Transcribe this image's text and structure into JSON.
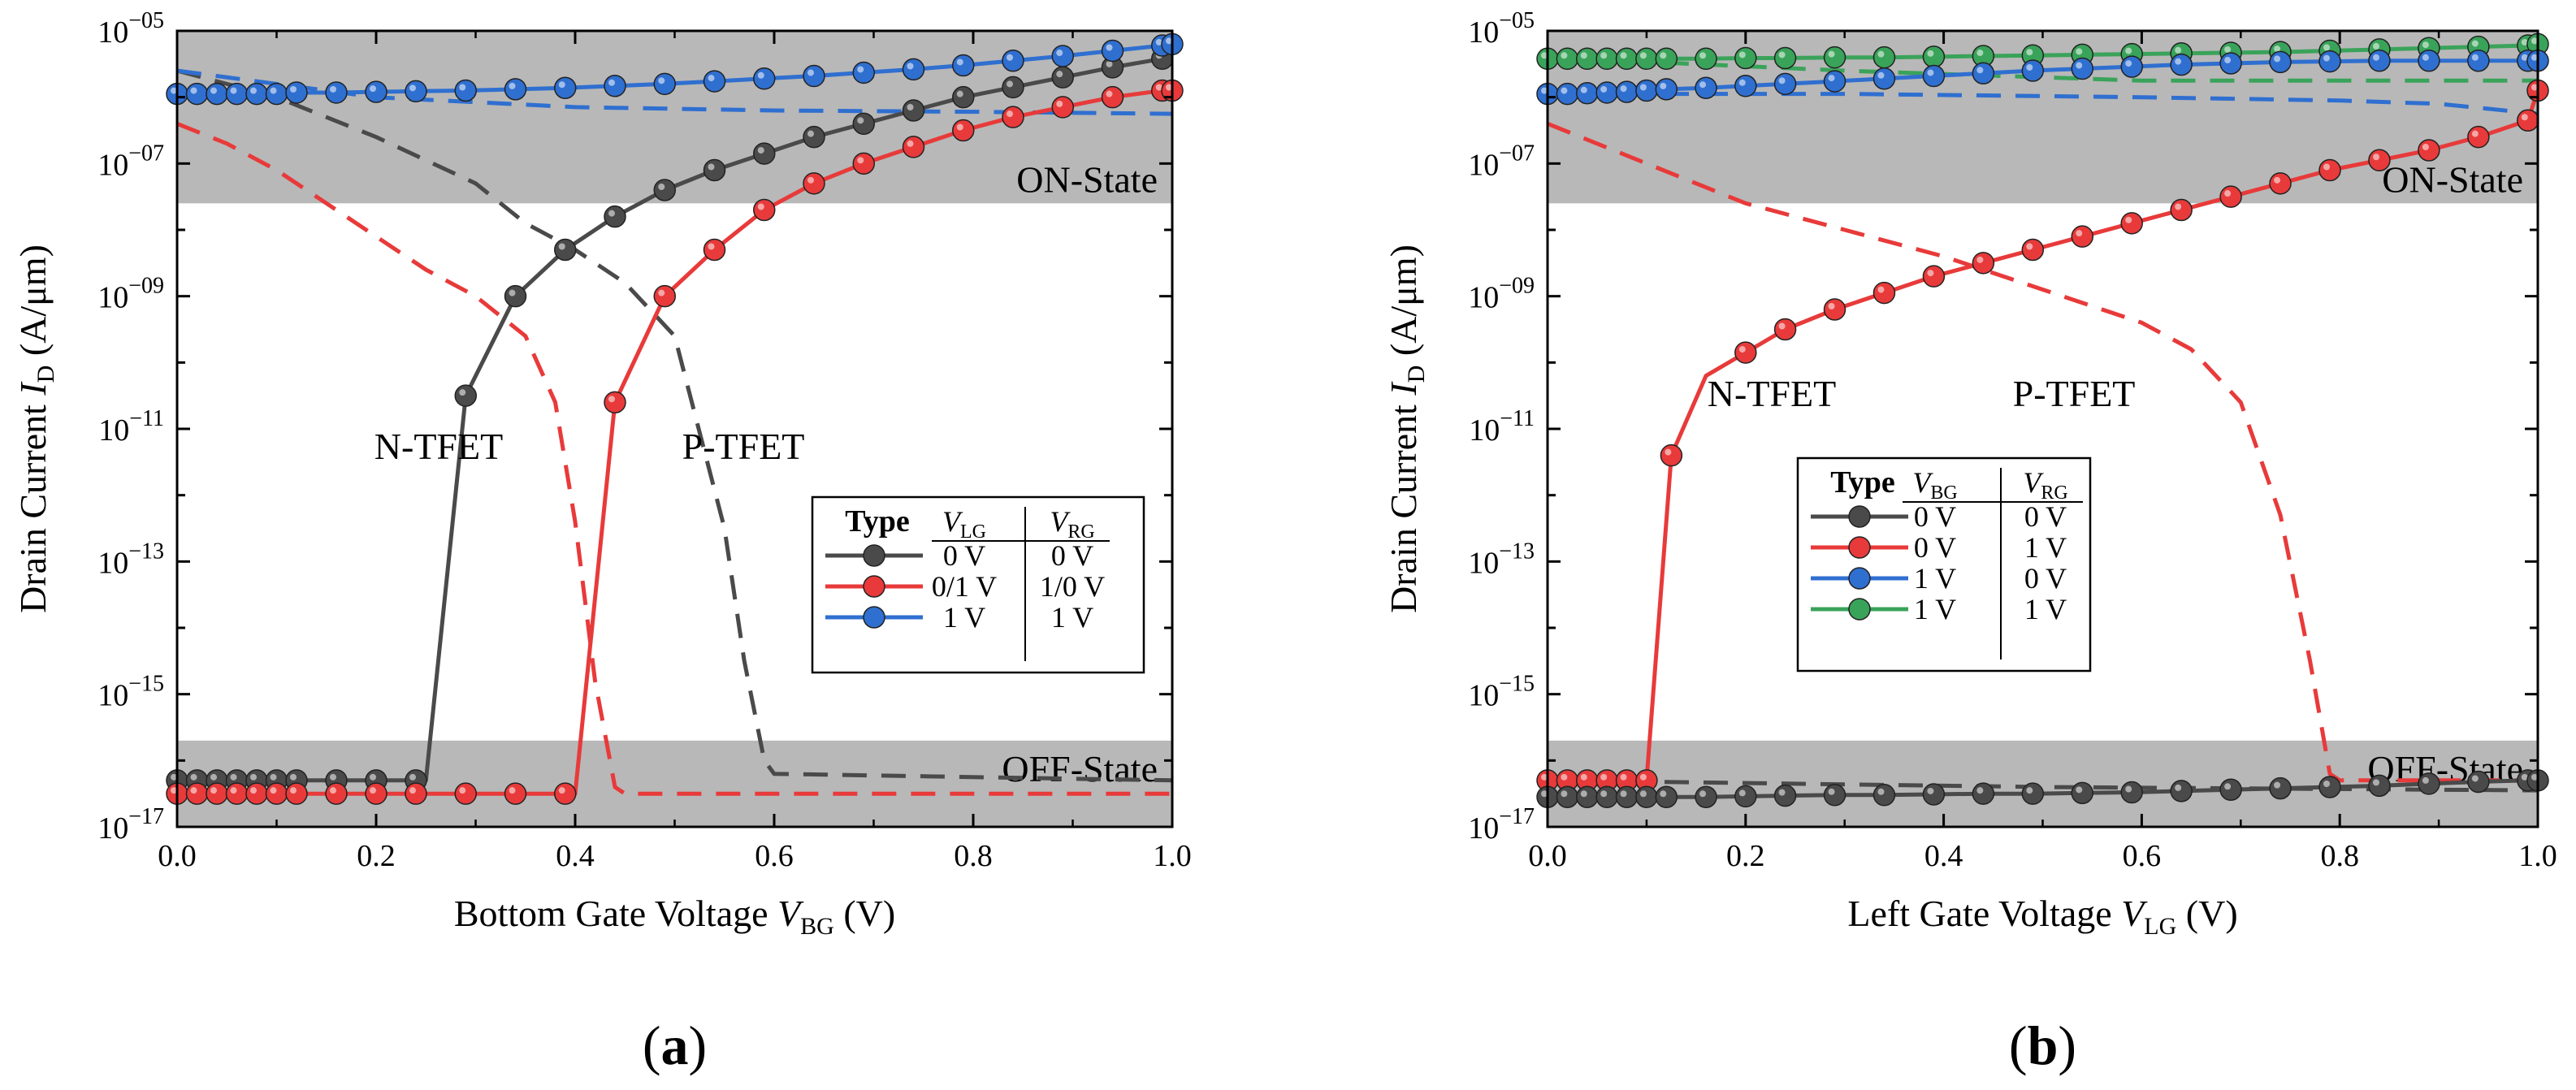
{
  "colors": {
    "black": "#4a4a4a",
    "red": "#e83a3a",
    "blue": "#2f6fd0",
    "green": "#3aa35a",
    "band": "#b8b8b8"
  },
  "chart_data": [
    {
      "type": "line",
      "panel_label": "(a)",
      "xlabel": "Bottom Gate Voltage ",
      "xlabel_var": "V",
      "xlabel_sub": "BG",
      "xlabel_unit": " (V)",
      "ylabel": "Drain Current ",
      "ylabel_var": "I",
      "ylabel_sub": "D",
      "ylabel_unit": " (A/μm)",
      "xlim": [
        0,
        1
      ],
      "ylim_exp": [
        -17,
        -5
      ],
      "yscale": "log",
      "xticks": [
        "0.0",
        "0.2",
        "0.4",
        "0.6",
        "0.8",
        "1.0"
      ],
      "yticks": [
        {
          "base": "10",
          "exp": "−05"
        },
        {
          "base": "10",
          "exp": "−07"
        },
        {
          "base": "10",
          "exp": "−09"
        },
        {
          "base": "10",
          "exp": "−11"
        },
        {
          "base": "10",
          "exp": "−13"
        },
        {
          "base": "10",
          "exp": "−15"
        },
        {
          "base": "10",
          "exp": "−17"
        }
      ],
      "bands": [
        {
          "label": "ON-State",
          "from_exp": -7.6,
          "to_exp": -5
        },
        {
          "label": "OFF-State",
          "from_exp": -17,
          "to_exp": -15.7
        }
      ],
      "annotations": [
        "N-TFET",
        "P-TFET"
      ],
      "legend": {
        "title": "Type",
        "col1": "V",
        "col1_sub": "LG",
        "col2": "V",
        "col2_sub": "RG",
        "rows": [
          {
            "color": "black",
            "c1": "0 V",
            "c2": "0 V"
          },
          {
            "color": "red",
            "c1": "0/1 V",
            "c2": "1/0 V"
          },
          {
            "color": "blue",
            "c1": "1 V",
            "c2": "1 V"
          }
        ]
      },
      "series": [
        {
          "name": "black solid",
          "color": "black",
          "style": "solid",
          "x": [
            0,
            0.02,
            0.04,
            0.06,
            0.08,
            0.1,
            0.12,
            0.16,
            0.2,
            0.24,
            0.25,
            0.29,
            0.34,
            0.39,
            0.44,
            0.49,
            0.54,
            0.59,
            0.64,
            0.69,
            0.74,
            0.79,
            0.84,
            0.89,
            0.94,
            0.99,
            1.0
          ],
          "y": [
            -16.3,
            -16.3,
            -16.3,
            -16.3,
            -16.3,
            -16.3,
            -16.3,
            -16.3,
            -16.3,
            -16.3,
            -16.3,
            -10.5,
            -9.0,
            -8.3,
            -7.8,
            -7.4,
            -7.1,
            -6.85,
            -6.6,
            -6.4,
            -6.2,
            -6.0,
            -5.85,
            -5.7,
            -5.55,
            -5.42,
            -5.4
          ],
          "markers": [
            0,
            1,
            2,
            3,
            4,
            5,
            6,
            7,
            8,
            9,
            11,
            12,
            13,
            14,
            15,
            16,
            17,
            18,
            19,
            20,
            21,
            22,
            23,
            24,
            25
          ]
        },
        {
          "name": "red solid",
          "color": "red",
          "style": "solid",
          "x": [
            0,
            0.02,
            0.04,
            0.06,
            0.08,
            0.1,
            0.12,
            0.16,
            0.2,
            0.24,
            0.29,
            0.34,
            0.39,
            0.4,
            0.44,
            0.49,
            0.54,
            0.59,
            0.64,
            0.69,
            0.74,
            0.79,
            0.84,
            0.89,
            0.94,
            0.99,
            1.0
          ],
          "y": [
            -16.5,
            -16.5,
            -16.5,
            -16.5,
            -16.5,
            -16.5,
            -16.5,
            -16.5,
            -16.5,
            -16.5,
            -16.5,
            -16.5,
            -16.5,
            -16.5,
            -10.6,
            -9.0,
            -8.3,
            -7.7,
            -7.3,
            -7.0,
            -6.75,
            -6.5,
            -6.3,
            -6.15,
            -6.0,
            -5.9,
            -5.9
          ],
          "markers": [
            0,
            1,
            2,
            3,
            4,
            5,
            6,
            7,
            8,
            9,
            10,
            11,
            12,
            14,
            15,
            16,
            17,
            18,
            19,
            20,
            21,
            22,
            23,
            24,
            25,
            26
          ]
        },
        {
          "name": "blue solid",
          "color": "blue",
          "style": "solid",
          "x": [
            0,
            0.02,
            0.04,
            0.06,
            0.08,
            0.1,
            0.12,
            0.16,
            0.2,
            0.24,
            0.29,
            0.34,
            0.39,
            0.44,
            0.49,
            0.54,
            0.59,
            0.64,
            0.69,
            0.74,
            0.79,
            0.84,
            0.89,
            0.94,
            0.99,
            1.0
          ],
          "y": [
            -5.95,
            -5.95,
            -5.95,
            -5.95,
            -5.95,
            -5.95,
            -5.93,
            -5.93,
            -5.92,
            -5.91,
            -5.9,
            -5.88,
            -5.86,
            -5.83,
            -5.8,
            -5.76,
            -5.72,
            -5.68,
            -5.63,
            -5.58,
            -5.52,
            -5.45,
            -5.38,
            -5.3,
            -5.22,
            -5.2
          ],
          "markers": [
            0,
            1,
            2,
            3,
            4,
            5,
            6,
            7,
            8,
            9,
            10,
            11,
            12,
            13,
            14,
            15,
            16,
            17,
            18,
            19,
            20,
            21,
            22,
            23,
            24,
            25
          ]
        },
        {
          "name": "black dashed",
          "color": "black",
          "style": "dashed",
          "x": [
            0,
            0.1,
            0.2,
            0.3,
            0.35,
            0.4,
            0.45,
            0.5,
            0.55,
            0.57,
            0.59,
            0.6,
            1.0
          ],
          "y": [
            -5.6,
            -6.0,
            -6.6,
            -7.3,
            -7.9,
            -8.3,
            -8.8,
            -9.6,
            -12.5,
            -14.5,
            -16.0,
            -16.2,
            -16.3
          ]
        },
        {
          "name": "red dashed",
          "color": "red",
          "style": "dashed",
          "x": [
            0,
            0.05,
            0.1,
            0.15,
            0.2,
            0.25,
            0.3,
            0.35,
            0.38,
            0.4,
            0.42,
            0.44,
            0.45,
            1.0
          ],
          "y": [
            -6.4,
            -6.7,
            -7.1,
            -7.6,
            -8.1,
            -8.6,
            -9.0,
            -9.6,
            -10.6,
            -12.4,
            -14.8,
            -16.4,
            -16.5,
            -16.5
          ]
        },
        {
          "name": "blue dashed",
          "color": "blue",
          "style": "dashed",
          "x": [
            0,
            0.2,
            0.4,
            0.6,
            0.8,
            1.0
          ],
          "y": [
            -5.6,
            -6.0,
            -6.15,
            -6.2,
            -6.22,
            -6.25
          ]
        }
      ]
    },
    {
      "type": "line",
      "panel_label": "(b)",
      "xlabel": "Left Gate Voltage ",
      "xlabel_var": "V",
      "xlabel_sub": "LG",
      "xlabel_unit": " (V)",
      "ylabel": "Drain Current ",
      "ylabel_var": "I",
      "ylabel_sub": "D",
      "ylabel_unit": " (A/μm)",
      "xlim": [
        0,
        1
      ],
      "ylim_exp": [
        -17,
        -5
      ],
      "yscale": "log",
      "xticks": [
        "0.0",
        "0.2",
        "0.4",
        "0.6",
        "0.8",
        "1.0"
      ],
      "yticks": [
        {
          "base": "10",
          "exp": "−05"
        },
        {
          "base": "10",
          "exp": "−07"
        },
        {
          "base": "10",
          "exp": "−09"
        },
        {
          "base": "10",
          "exp": "−11"
        },
        {
          "base": "10",
          "exp": "−13"
        },
        {
          "base": "10",
          "exp": "−15"
        },
        {
          "base": "10",
          "exp": "−17"
        }
      ],
      "bands": [
        {
          "label": "ON-State",
          "from_exp": -7.6,
          "to_exp": -5
        },
        {
          "label": "OFF-State",
          "from_exp": -17,
          "to_exp": -15.7
        }
      ],
      "annotations": [
        "N-TFET",
        "P-TFET"
      ],
      "legend": {
        "title": "Type",
        "col1": "V",
        "col1_sub": "BG",
        "col2": "V",
        "col2_sub": "RG",
        "rows": [
          {
            "color": "black",
            "c1": "0 V",
            "c2": "0 V"
          },
          {
            "color": "red",
            "c1": "0 V",
            "c2": "1 V"
          },
          {
            "color": "blue",
            "c1": "1 V",
            "c2": "0 V"
          },
          {
            "color": "green",
            "c1": "1 V",
            "c2": "1 V"
          }
        ]
      },
      "series": [
        {
          "name": "green solid",
          "color": "green",
          "style": "solid",
          "x": [
            0,
            0.02,
            0.04,
            0.06,
            0.08,
            0.1,
            0.12,
            0.16,
            0.2,
            0.24,
            0.29,
            0.34,
            0.39,
            0.44,
            0.49,
            0.54,
            0.59,
            0.64,
            0.69,
            0.74,
            0.79,
            0.84,
            0.89,
            0.94,
            0.99,
            1.0
          ],
          "y": [
            -5.42,
            -5.42,
            -5.42,
            -5.42,
            -5.42,
            -5.42,
            -5.42,
            -5.42,
            -5.41,
            -5.41,
            -5.4,
            -5.4,
            -5.39,
            -5.38,
            -5.37,
            -5.36,
            -5.35,
            -5.34,
            -5.33,
            -5.32,
            -5.3,
            -5.28,
            -5.26,
            -5.24,
            -5.22,
            -5.2
          ],
          "markers": [
            0,
            1,
            2,
            3,
            4,
            5,
            6,
            7,
            8,
            9,
            10,
            11,
            12,
            13,
            14,
            15,
            16,
            17,
            18,
            19,
            20,
            21,
            22,
            23,
            24,
            25
          ]
        },
        {
          "name": "blue solid",
          "color": "blue",
          "style": "solid",
          "x": [
            0,
            0.02,
            0.04,
            0.06,
            0.08,
            0.1,
            0.12,
            0.16,
            0.2,
            0.24,
            0.29,
            0.34,
            0.39,
            0.44,
            0.49,
            0.54,
            0.59,
            0.64,
            0.69,
            0.74,
            0.79,
            0.84,
            0.89,
            0.94,
            0.99,
            1.0
          ],
          "y": [
            -5.95,
            -5.95,
            -5.94,
            -5.93,
            -5.92,
            -5.9,
            -5.88,
            -5.86,
            -5.83,
            -5.8,
            -5.76,
            -5.72,
            -5.68,
            -5.64,
            -5.6,
            -5.57,
            -5.54,
            -5.51,
            -5.49,
            -5.47,
            -5.46,
            -5.45,
            -5.45,
            -5.45,
            -5.45,
            -5.45
          ],
          "markers": [
            0,
            1,
            2,
            3,
            4,
            5,
            6,
            7,
            8,
            9,
            10,
            11,
            12,
            13,
            14,
            15,
            16,
            17,
            18,
            19,
            20,
            21,
            22,
            23,
            24,
            25
          ]
        },
        {
          "name": "red solid",
          "color": "red",
          "style": "solid",
          "x": [
            0,
            0.02,
            0.04,
            0.06,
            0.08,
            0.1,
            0.125,
            0.16,
            0.2,
            0.24,
            0.29,
            0.34,
            0.39,
            0.44,
            0.49,
            0.54,
            0.59,
            0.64,
            0.69,
            0.74,
            0.79,
            0.84,
            0.89,
            0.94,
            0.99,
            1.0
          ],
          "y": [
            -16.3,
            -16.3,
            -16.3,
            -16.3,
            -16.3,
            -16.3,
            -11.4,
            -10.2,
            -9.85,
            -9.5,
            -9.2,
            -8.95,
            -8.7,
            -8.5,
            -8.3,
            -8.1,
            -7.9,
            -7.7,
            -7.5,
            -7.3,
            -7.1,
            -6.95,
            -6.8,
            -6.6,
            -6.35,
            -5.9
          ],
          "markers": [
            0,
            1,
            2,
            3,
            4,
            5,
            6,
            8,
            9,
            10,
            11,
            12,
            13,
            14,
            15,
            16,
            17,
            18,
            19,
            20,
            21,
            22,
            23,
            24,
            25
          ]
        },
        {
          "name": "black solid",
          "color": "black",
          "style": "solid",
          "x": [
            0,
            0.02,
            0.04,
            0.06,
            0.08,
            0.1,
            0.12,
            0.16,
            0.2,
            0.24,
            0.29,
            0.34,
            0.39,
            0.44,
            0.49,
            0.54,
            0.59,
            0.64,
            0.69,
            0.74,
            0.79,
            0.84,
            0.89,
            0.94,
            0.99,
            1.0
          ],
          "y": [
            -16.55,
            -16.55,
            -16.55,
            -16.55,
            -16.55,
            -16.55,
            -16.55,
            -16.55,
            -16.54,
            -16.53,
            -16.52,
            -16.52,
            -16.51,
            -16.5,
            -16.5,
            -16.49,
            -16.48,
            -16.46,
            -16.44,
            -16.42,
            -16.4,
            -16.38,
            -16.35,
            -16.32,
            -16.3,
            -16.3
          ],
          "markers": [
            0,
            1,
            2,
            3,
            4,
            5,
            6,
            7,
            8,
            9,
            10,
            11,
            12,
            13,
            14,
            15,
            16,
            17,
            18,
            19,
            20,
            21,
            22,
            23,
            24,
            25
          ]
        },
        {
          "name": "green dashed",
          "color": "green",
          "style": "dashed",
          "x": [
            0,
            0.3,
            0.6,
            0.8,
            1.0
          ],
          "y": [
            -5.4,
            -5.6,
            -5.75,
            -5.75,
            -5.75
          ]
        },
        {
          "name": "blue dashed",
          "color": "blue",
          "style": "dashed",
          "x": [
            0,
            0.3,
            0.6,
            0.8,
            0.9,
            1.0
          ],
          "y": [
            -5.95,
            -5.95,
            -6.0,
            -6.05,
            -6.1,
            -6.25
          ]
        },
        {
          "name": "red dashed",
          "color": "red",
          "style": "dashed",
          "x": [
            0,
            0.1,
            0.2,
            0.3,
            0.4,
            0.5,
            0.6,
            0.65,
            0.7,
            0.74,
            0.77,
            0.79,
            0.8,
            1.0
          ],
          "y": [
            -6.4,
            -7.0,
            -7.6,
            -8.0,
            -8.4,
            -8.9,
            -9.4,
            -9.8,
            -10.6,
            -12.3,
            -14.5,
            -16.2,
            -16.3,
            -16.3
          ]
        },
        {
          "name": "black dashed",
          "color": "black",
          "style": "dashed",
          "x": [
            0,
            0.5,
            1.0
          ],
          "y": [
            -16.3,
            -16.4,
            -16.45
          ]
        }
      ]
    }
  ]
}
